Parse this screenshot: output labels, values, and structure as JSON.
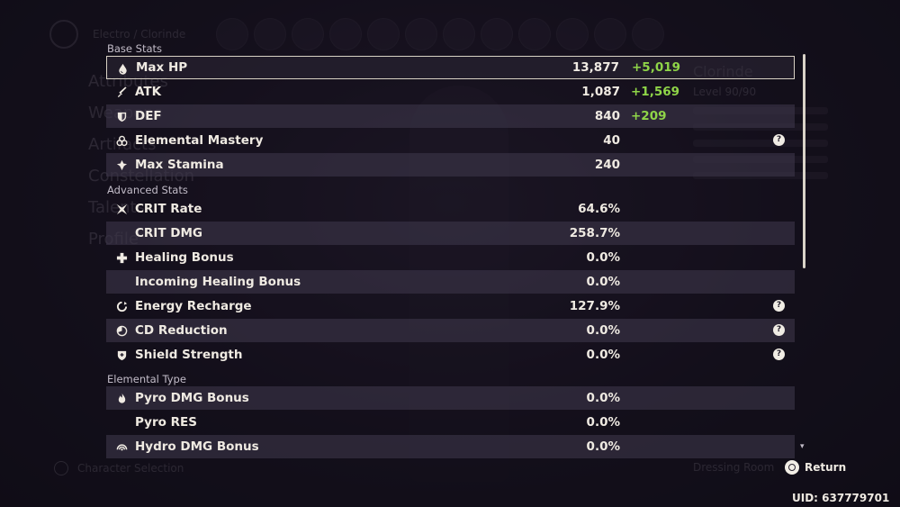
{
  "background": {
    "region_label": "Electro / Clorinde",
    "nav_items": [
      "Attributes",
      "Weapons",
      "Artifacts",
      "Constellation",
      "Talents",
      "Profile"
    ],
    "character_name": "Clorinde",
    "level": "Level 90/90",
    "char_select_label": "Character Selection",
    "dressing_room_label": "Dressing Room"
  },
  "sections": {
    "base": "Base Stats",
    "advanced": "Advanced Stats",
    "elemental": "Elemental Type"
  },
  "base_stats": [
    {
      "icon": "drop-icon",
      "label": "Max HP",
      "value": "13,877",
      "bonus": "+5,019"
    },
    {
      "icon": "sword-icon",
      "label": "ATK",
      "value": "1,087",
      "bonus": "+1,569"
    },
    {
      "icon": "shield-icon",
      "label": "DEF",
      "value": "840",
      "bonus": "+209"
    },
    {
      "icon": "mastery-icon",
      "label": "Elemental Mastery",
      "value": "40",
      "help": "?"
    },
    {
      "icon": "stamina-icon",
      "label": "Max Stamina",
      "value": "240"
    }
  ],
  "advanced_stats": [
    {
      "icon": "crit-icon",
      "label": "CRIT Rate",
      "value": "64.6%"
    },
    {
      "icon": "",
      "label": "CRIT DMG",
      "value": "258.7%"
    },
    {
      "icon": "healing-cross-icon",
      "label": "Healing Bonus",
      "value": "0.0%"
    },
    {
      "icon": "",
      "label": "Incoming Healing Bonus",
      "value": "0.0%"
    },
    {
      "icon": "energy-recharge-icon",
      "label": "Energy Recharge",
      "value": "127.9%",
      "help": "?"
    },
    {
      "icon": "cd-reduction-icon",
      "label": "CD Reduction",
      "value": "0.0%",
      "help": "?"
    },
    {
      "icon": "shield-strength-icon",
      "label": "Shield Strength",
      "value": "0.0%",
      "help": "?"
    }
  ],
  "elemental_stats": [
    {
      "icon": "pyro-icon",
      "label": "Pyro DMG Bonus",
      "value": "0.0%"
    },
    {
      "icon": "",
      "label": "Pyro RES",
      "value": "0.0%"
    },
    {
      "icon": "hydro-icon",
      "label": "Hydro DMG Bonus",
      "value": "0.0%"
    }
  ],
  "footer": {
    "return_label": "Return",
    "uid": "UID: 637779701"
  },
  "colors": {
    "bonus_green": "#8fd548",
    "row_shade": "#3c3548",
    "selected_border": "#d8d2c4"
  }
}
